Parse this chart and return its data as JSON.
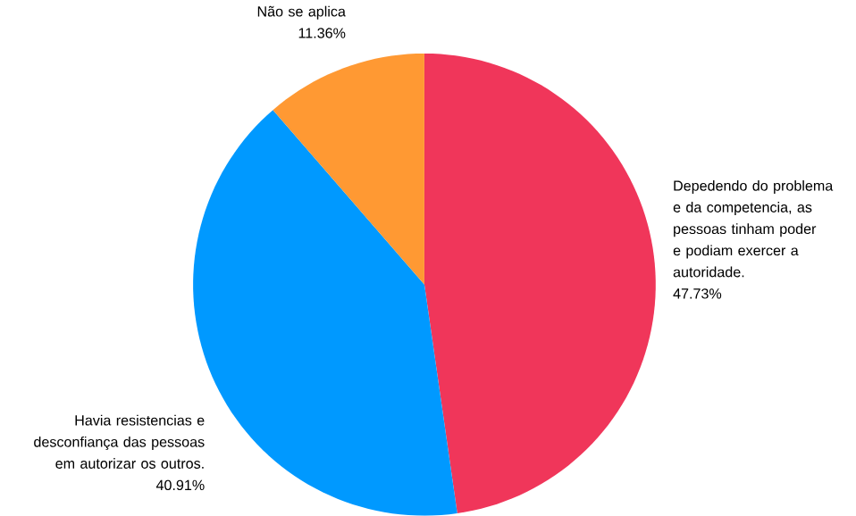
{
  "chart_data": {
    "type": "pie",
    "categories": [
      "Depedendo do problema e da competencia, as pessoas tinham  poder e podiam exercer a autoridade.",
      "Havia resistencias e desconfiança das pessoas em autorizar os outros.",
      "Não se aplica"
    ],
    "values": [
      47.73,
      40.91,
      11.36
    ],
    "value_labels": [
      "47.73%",
      "40.91%",
      "11.36%"
    ],
    "colors": [
      "#f0365a",
      "#0099ff",
      "#ff9933"
    ]
  }
}
